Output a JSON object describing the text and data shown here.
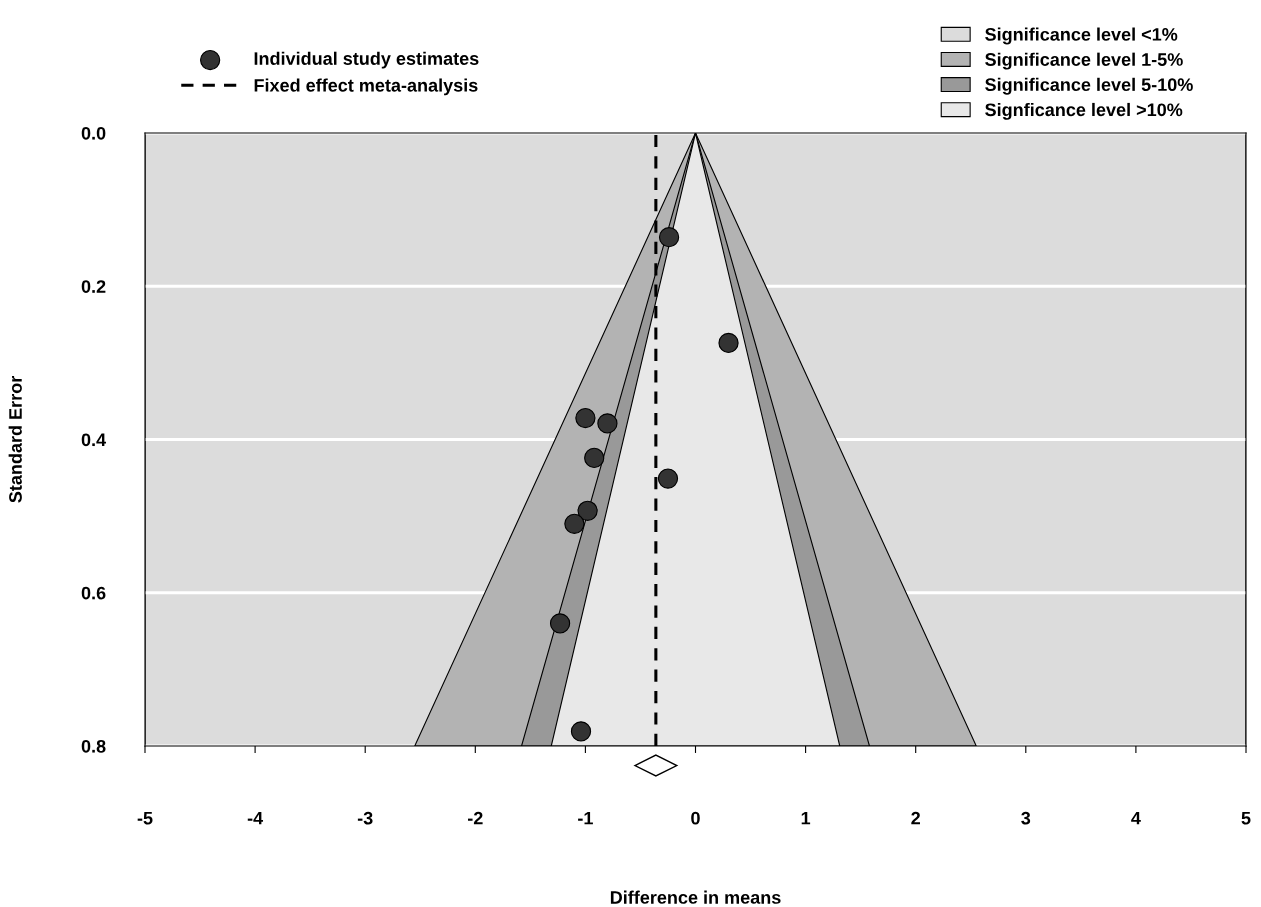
{
  "chart_data": {
    "type": "scatter",
    "xlabel": "Difference in means",
    "ylabel": "Standard Error",
    "xlim": [
      -5,
      5
    ],
    "ylim": [
      0.8,
      0.0
    ],
    "xticks": [
      -5,
      -4,
      -3,
      -2,
      -1,
      0,
      1,
      2,
      3,
      4,
      5
    ],
    "yticks": [
      {
        "value": 0.0,
        "label": "0.0"
      },
      {
        "value": 0.2,
        "label": "0.2"
      },
      {
        "value": 0.4,
        "label": "0.4"
      },
      {
        "value": 0.6,
        "label": "0.6"
      },
      {
        "value": 0.8,
        "label": "0.8"
      }
    ],
    "grid": "y",
    "legend": "top",
    "series": [
      {
        "name": "Significance level 1-5%",
        "type": "area",
        "color": "#b3b3b3",
        "x": [
          -2.55,
          0,
          2.55
        ],
        "values": [
          0.8,
          0.0,
          0.8
        ]
      },
      {
        "name": "Significance level 5-10%",
        "type": "area",
        "color": "#999999",
        "x": [
          -1.58,
          0,
          1.58
        ],
        "values": [
          0.8,
          0.0,
          0.8
        ]
      },
      {
        "name": "Signficance level >10%",
        "type": "area",
        "color": "#e8e8e8",
        "x": [
          -1.31,
          0,
          1.31
        ],
        "values": [
          0.8,
          0.0,
          0.8
        ]
      },
      {
        "name": "Individual study estimates",
        "color": "#333333",
        "marker": "circle",
        "x": [
          -0.24,
          0.3,
          -1.0,
          -0.8,
          -0.92,
          -0.25,
          -0.98,
          -1.1,
          -1.23,
          -1.04
        ],
        "values": [
          0.136,
          0.274,
          0.372,
          0.379,
          0.424,
          0.451,
          0.493,
          0.51,
          0.64,
          0.781
        ]
      }
    ],
    "bands": [
      {
        "axis": "y",
        "from": 0.0,
        "to": 0.8,
        "label": "Significance level <1%",
        "color": "#dcdcdc"
      }
    ],
    "ref_lines": [
      {
        "axis": "x",
        "value": -0.36,
        "label": "Fixed effect meta-analysis",
        "color": "#000000",
        "line_style": "dashed"
      }
    ]
  }
}
